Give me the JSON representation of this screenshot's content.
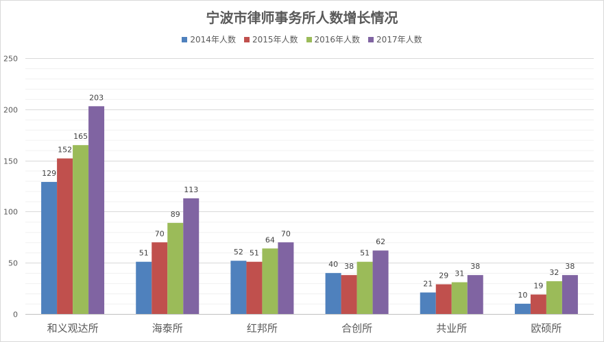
{
  "chart_data": {
    "type": "bar",
    "title": "宁波市律师事务所人数增长情况",
    "categories": [
      "和义观达所",
      "海泰所",
      "红邦所",
      "合创所",
      "共业所",
      "欧硕所"
    ],
    "series": [
      {
        "name": "2014年人数",
        "color": "#4f81bd",
        "values": [
          129,
          51,
          52,
          40,
          21,
          10
        ]
      },
      {
        "name": "2015年人数",
        "color": "#c0504d",
        "values": [
          152,
          70,
          51,
          38,
          29,
          19
        ]
      },
      {
        "name": "2016年人数",
        "color": "#9bbb59",
        "values": [
          165,
          89,
          64,
          51,
          31,
          32
        ]
      },
      {
        "name": "2017年人数",
        "color": "#8064a2",
        "values": [
          203,
          113,
          70,
          62,
          38,
          38
        ]
      }
    ],
    "ylim": [
      0,
      250
    ],
    "yticks": [
      0,
      50,
      100,
      150,
      200,
      250
    ],
    "legend_position": "top",
    "grid": true,
    "data_labels": true
  }
}
